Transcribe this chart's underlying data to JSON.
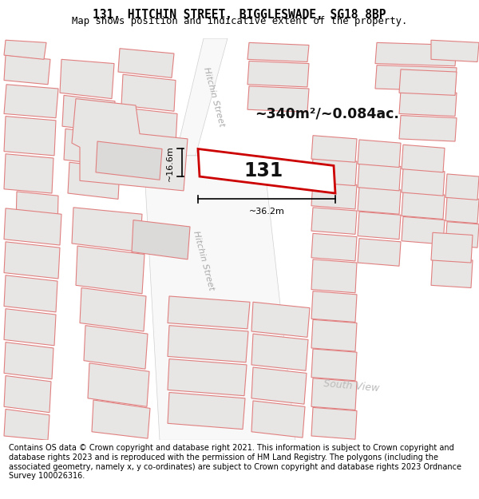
{
  "title_line1": "131, HITCHIN STREET, BIGGLESWADE, SG18 8BP",
  "title_line2": "Map shows position and indicative extent of the property.",
  "footer_text": "Contains OS data © Crown copyright and database right 2021. This information is subject to Crown copyright and database rights 2023 and is reproduced with the permission of HM Land Registry. The polygons (including the associated geometry, namely x, y co-ordinates) are subject to Crown copyright and database rights 2023 Ordnance Survey 100026316.",
  "area_label": "~340m²/~0.084ac.",
  "property_number": "131",
  "dim_width": "~36.2m",
  "dim_height": "~16.6m",
  "map_bg": "#ffffff",
  "building_fill": "#e8e6e4",
  "building_stroke": "#e08080",
  "highlight_fill": "#ffffff",
  "highlight_stroke": "#cc0000",
  "street_label1": "Hitchin Street",
  "street_label2": "Hitchin Street",
  "street_label3": "South View",
  "title_fontsize": 10.5,
  "footer_fontsize": 7.0
}
